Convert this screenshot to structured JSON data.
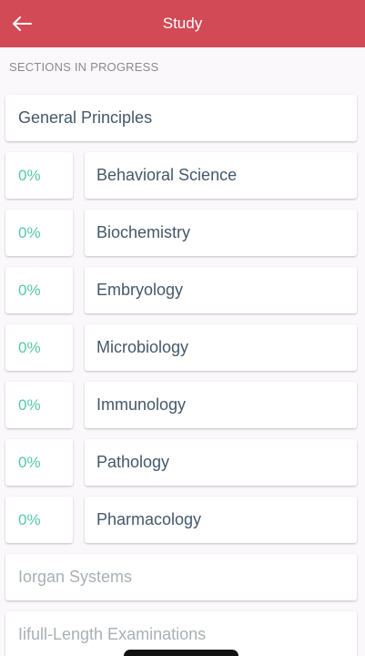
{
  "header": {
    "title": "Study",
    "back_icon": "arrow-left-icon",
    "background_color": "#d24a55"
  },
  "section_label": "SECTIONS IN PROGRESS",
  "general_principles": {
    "label": "General Principles"
  },
  "sections": [
    {
      "percent": "0%",
      "name": "Behavioral Science"
    },
    {
      "percent": "0%",
      "name": "Biochemistry"
    },
    {
      "percent": "0%",
      "name": "Embryology"
    },
    {
      "percent": "0%",
      "name": "Microbiology"
    },
    {
      "percent": "0%",
      "name": "Immunology"
    },
    {
      "percent": "0%",
      "name": "Pathology"
    },
    {
      "percent": "0%",
      "name": "Pharmacology"
    }
  ],
  "other_categories": [
    {
      "label": "Iorgan Systems"
    },
    {
      "label": "Iifull-Length Examinations"
    }
  ],
  "colors": {
    "percent_text": "#58c7a8",
    "label_text": "#45586a",
    "muted_text": "#a9b0b6"
  }
}
